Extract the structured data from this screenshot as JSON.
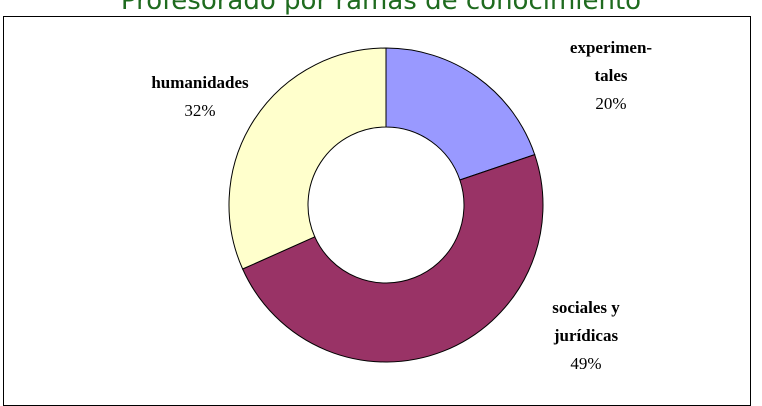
{
  "chart_data": {
    "type": "pie",
    "variant": "donut",
    "title": "Profesorado por ramas de conocimiento",
    "legend": "none",
    "slices": [
      {
        "name": "experimentales",
        "label_lines": [
          "experimen-",
          "tales"
        ],
        "percent_label": "20%",
        "value": 20,
        "color": "#9999ff"
      },
      {
        "name": "sociales y jurídicas",
        "label_lines": [
          "sociales y",
          "jurídicas"
        ],
        "percent_label": "49%",
        "value": 49,
        "color": "#993366"
      },
      {
        "name": "humanidades",
        "label_lines": [
          "humanidades"
        ],
        "percent_label": "32%",
        "value": 32,
        "color": "#ffffcc"
      }
    ]
  }
}
